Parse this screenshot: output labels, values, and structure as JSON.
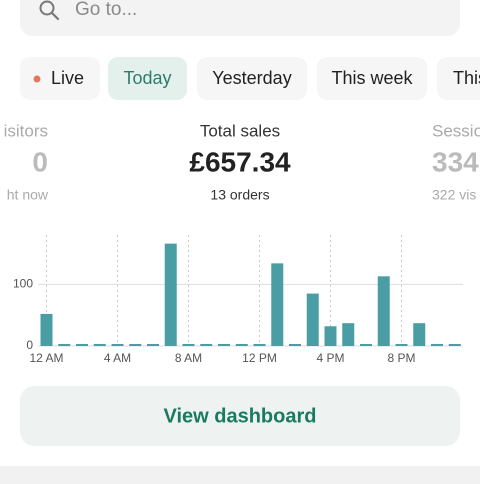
{
  "search": {
    "placeholder": "Go to..."
  },
  "tabs": [
    "Live",
    "Today",
    "Yesterday",
    "This week",
    "This"
  ],
  "stats": [
    {
      "label": "isitors",
      "value": "0",
      "sub": "ht now"
    },
    {
      "label": "Total sales",
      "value": "£657.34",
      "sub": "13 orders"
    },
    {
      "label": "Sessio",
      "value": "334",
      "sub": "322 vis"
    }
  ],
  "chart_data": {
    "type": "bar",
    "categories": [
      "12 AM",
      null,
      null,
      null,
      "4 AM",
      null,
      null,
      null,
      "8 AM",
      null,
      null,
      null,
      "12 PM",
      null,
      null,
      null,
      "4 PM",
      null,
      null,
      null,
      "8 PM",
      null,
      null,
      null
    ],
    "values": [
      52,
      0,
      0,
      0,
      0,
      0,
      0,
      166,
      0,
      0,
      0,
      0,
      0,
      134,
      0,
      85,
      32,
      37,
      0,
      113,
      0,
      37,
      0,
      0
    ],
    "color": "#4a9da3",
    "ylim": [
      0,
      180
    ],
    "yticks": [
      0,
      100
    ],
    "grid": true
  },
  "button": {
    "label": "View dashboard"
  }
}
